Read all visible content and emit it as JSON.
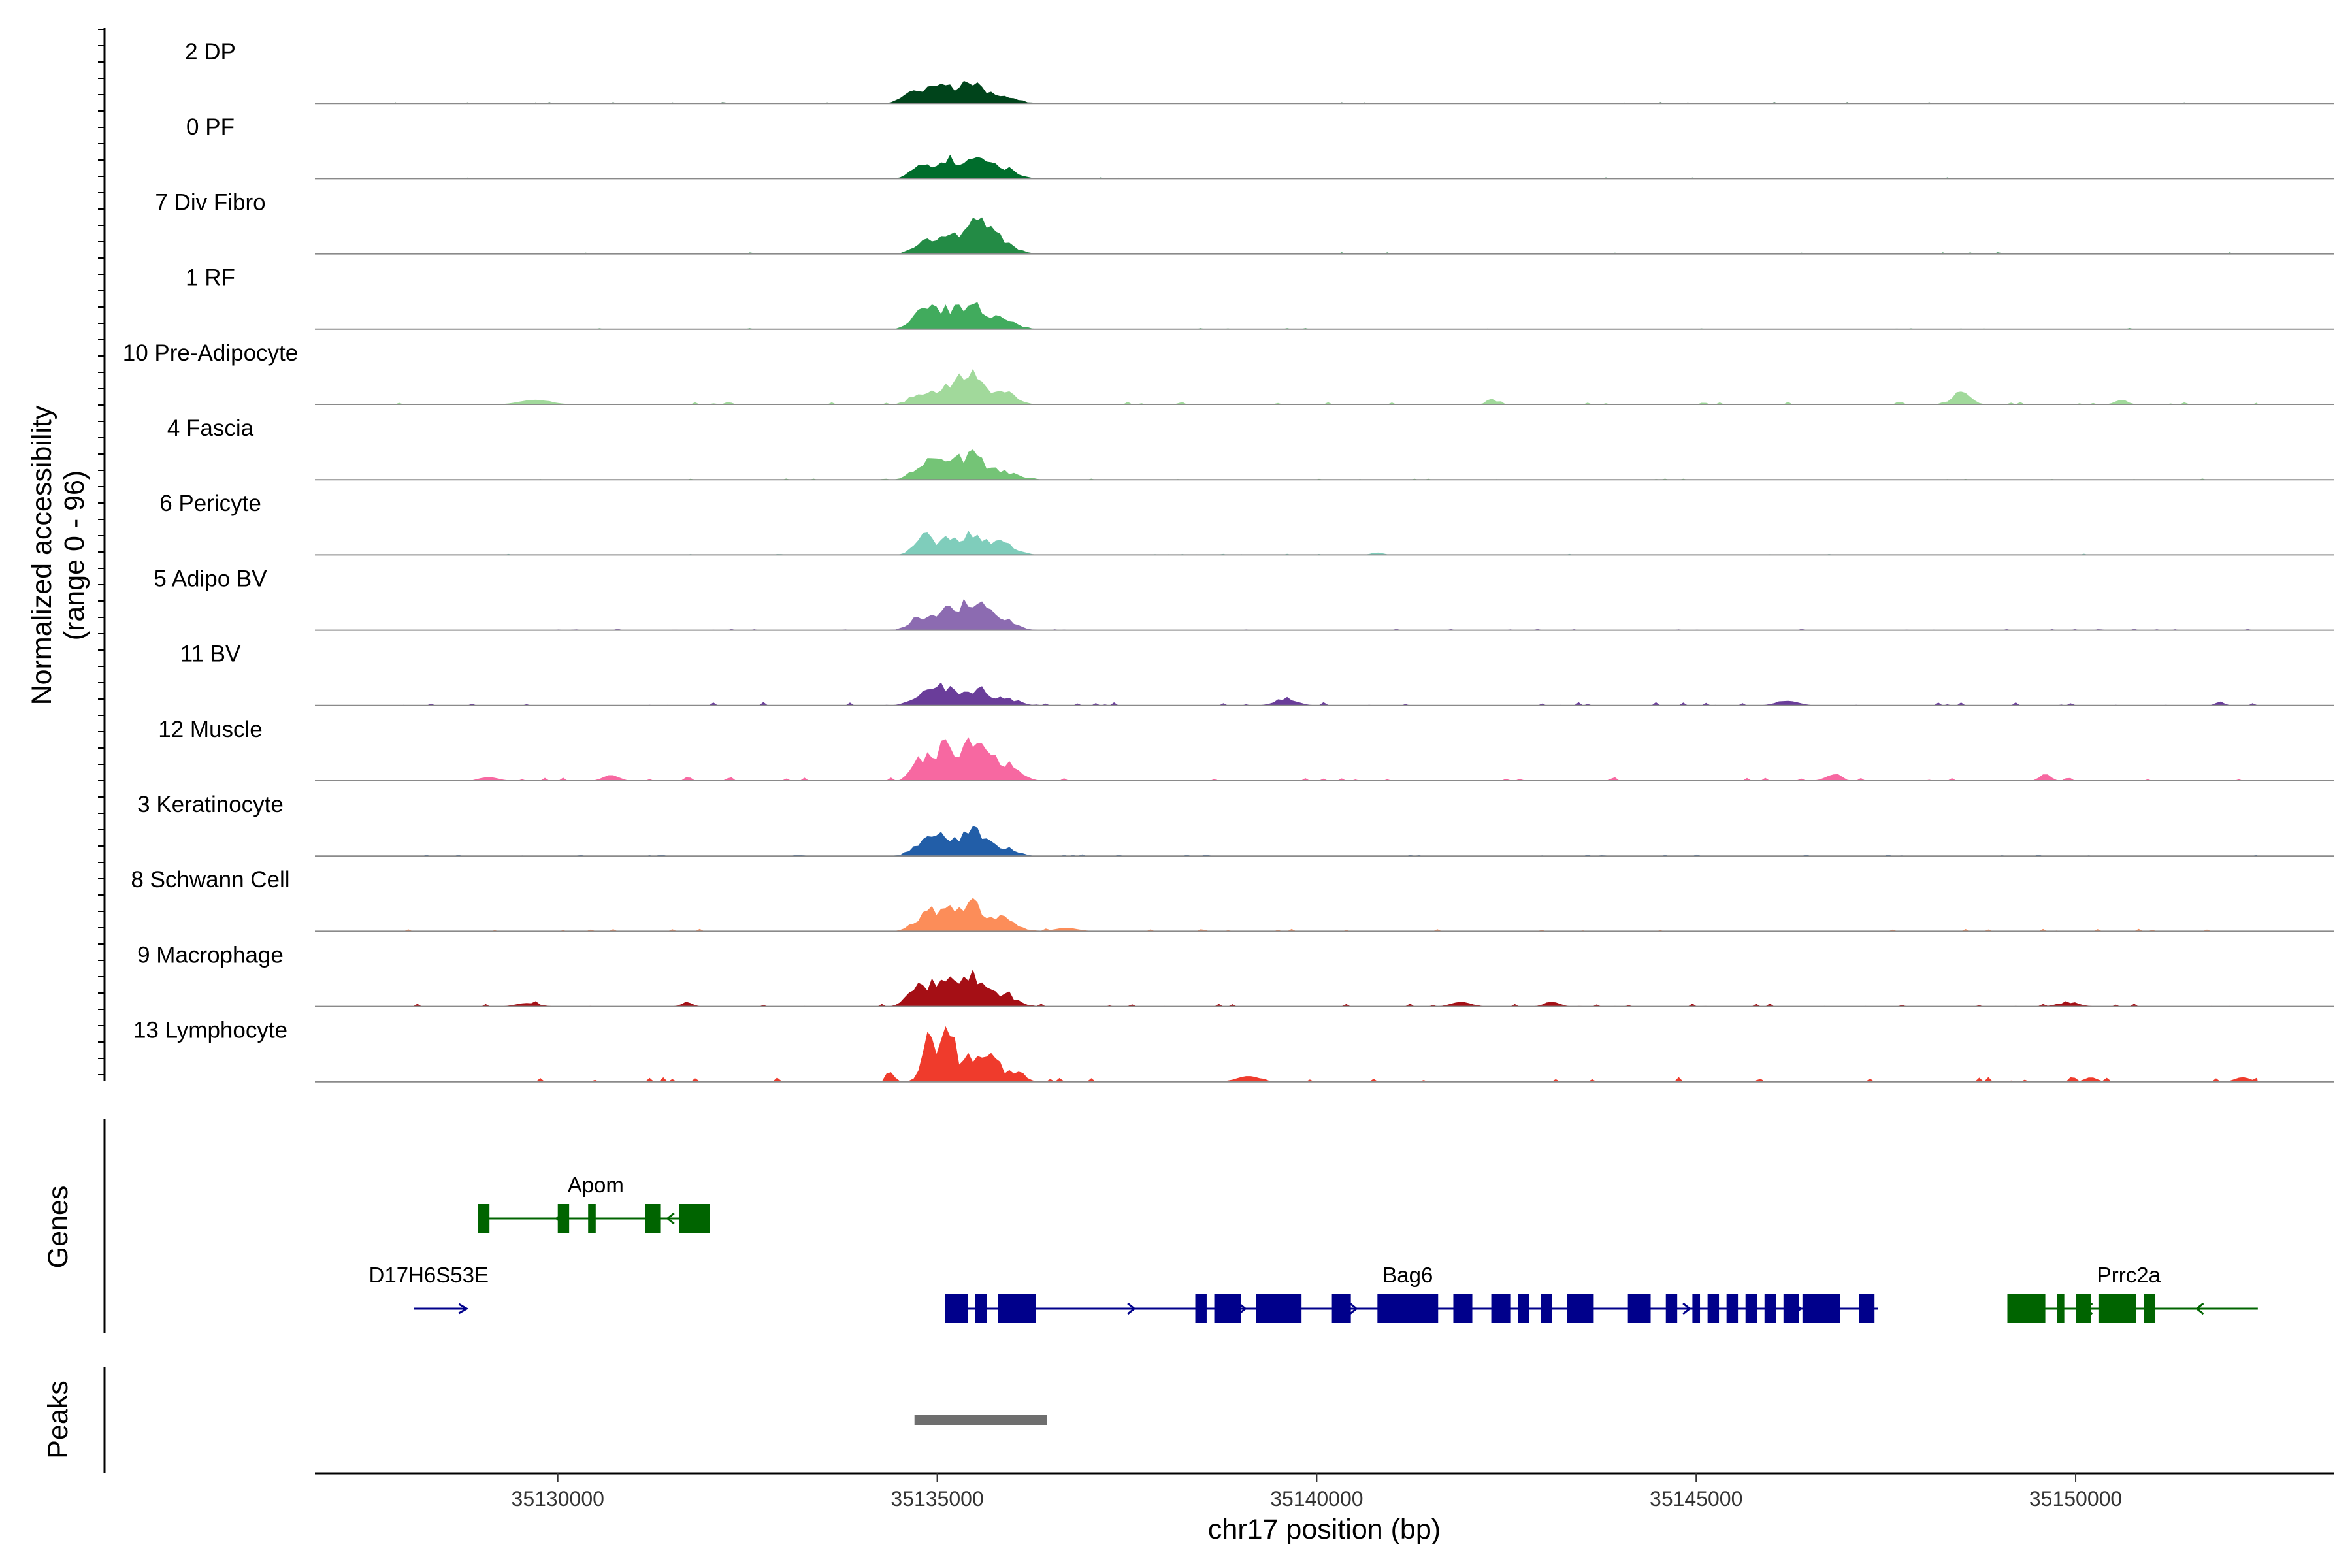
{
  "chart_data": {
    "type": "area",
    "title": "",
    "chromosome": "chr17",
    "xlabel": "chr17 position (bp)",
    "ylabel": "Normalized accessibility",
    "ylabel_range": "(range 0 - 96)",
    "ylim": [
      0,
      96
    ],
    "xlim": [
      35126800,
      35153400
    ],
    "x_ticks": [
      35130000,
      35135000,
      35140000,
      35145000,
      35150000
    ],
    "x_tick_labels": [
      "35130000",
      "35135000",
      "35140000",
      "35145000",
      "35150000"
    ],
    "tracks": [
      {
        "name": "2 DP",
        "color": "#00441b",
        "peaks": [
          [
            35134700,
            22,
            140
          ],
          [
            35135000,
            30,
            140
          ],
          [
            35135400,
            36,
            160
          ],
          [
            35135800,
            18,
            180
          ]
        ],
        "noise": 1.5
      },
      {
        "name": "0 PF",
        "color": "#006d2c",
        "peaks": [
          [
            35134800,
            30,
            130
          ],
          [
            35135150,
            34,
            130
          ],
          [
            35135500,
            32,
            150
          ],
          [
            35135850,
            20,
            170
          ]
        ],
        "noise": 1.5
      },
      {
        "name": "7 Div Fibro",
        "color": "#238b45",
        "peaks": [
          [
            35134800,
            22,
            130
          ],
          [
            35135100,
            28,
            140
          ],
          [
            35135500,
            52,
            170
          ],
          [
            35135850,
            24,
            170
          ]
        ],
        "noise": 2
      },
      {
        "name": "1 RF",
        "color": "#41ab5d",
        "peaks": [
          [
            35134800,
            34,
            130
          ],
          [
            35135100,
            36,
            130
          ],
          [
            35135450,
            44,
            150
          ],
          [
            35135850,
            18,
            180
          ]
        ],
        "noise": 1.5
      },
      {
        "name": "10 Pre-Adipocyte",
        "color": "#a1d99b",
        "peaks": [
          [
            35134800,
            22,
            130
          ],
          [
            35135150,
            26,
            140
          ],
          [
            35135450,
            48,
            160
          ],
          [
            35135850,
            22,
            170
          ],
          [
            35148500,
            22,
            110
          ],
          [
            35129700,
            8,
            200
          ],
          [
            35150600,
            8,
            80
          ],
          [
            35142300,
            10,
            60
          ]
        ],
        "noise": 3.5
      },
      {
        "name": "4 Fascia",
        "color": "#74c476",
        "peaks": [
          [
            35134800,
            30,
            130
          ],
          [
            35135100,
            32,
            140
          ],
          [
            35135450,
            42,
            160
          ],
          [
            35135850,
            16,
            180
          ]
        ],
        "noise": 1.5
      },
      {
        "name": "6 Pericyte",
        "color": "#7fcdbb",
        "peaks": [
          [
            35134800,
            36,
            110
          ],
          [
            35135100,
            24,
            140
          ],
          [
            35135450,
            40,
            160
          ],
          [
            35135850,
            22,
            170
          ],
          [
            35140800,
            4,
            80
          ]
        ],
        "noise": 1.5
      },
      {
        "name": "5 Adipo BV",
        "color": "#8c6bb1",
        "peaks": [
          [
            35134800,
            22,
            150
          ],
          [
            35135100,
            30,
            140
          ],
          [
            35135450,
            56,
            170
          ],
          [
            35135850,
            20,
            180
          ]
        ],
        "noise": 2
      },
      {
        "name": "11 BV",
        "color": "#6a3d9a",
        "peaks": [
          [
            35134800,
            18,
            150
          ],
          [
            35135100,
            30,
            140
          ],
          [
            35135500,
            30,
            160
          ],
          [
            35135900,
            12,
            180
          ],
          [
            35139600,
            10,
            150
          ],
          [
            35146200,
            8,
            150
          ],
          [
            35151900,
            6,
            60
          ]
        ],
        "noise": 4.5
      },
      {
        "name": "12 Muscle",
        "color": "#f768a1",
        "peaks": [
          [
            35134800,
            38,
            120
          ],
          [
            35135100,
            58,
            130
          ],
          [
            35135450,
            68,
            150
          ],
          [
            35135850,
            36,
            180
          ],
          [
            35129100,
            6,
            120
          ],
          [
            35130700,
            10,
            100
          ],
          [
            35146800,
            10,
            100
          ],
          [
            35149600,
            12,
            70
          ]
        ],
        "noise": 4.5
      },
      {
        "name": "3 Keratinocyte",
        "color": "#225ea8",
        "peaks": [
          [
            35134800,
            26,
            130
          ],
          [
            35135100,
            34,
            130
          ],
          [
            35135450,
            44,
            150
          ],
          [
            35135850,
            18,
            170
          ]
        ],
        "noise": 2
      },
      {
        "name": "8 Schwann Cell",
        "color": "#fc8d59",
        "peaks": [
          [
            35134800,
            24,
            130
          ],
          [
            35135100,
            46,
            140
          ],
          [
            35135450,
            46,
            160
          ],
          [
            35135850,
            22,
            180
          ],
          [
            35136700,
            6,
            150
          ]
        ],
        "noise": 3
      },
      {
        "name": "9 Macrophage",
        "color": "#a50f15",
        "peaks": [
          [
            35134750,
            36,
            130
          ],
          [
            35135100,
            58,
            140
          ],
          [
            35135450,
            58,
            160
          ],
          [
            35135850,
            22,
            180
          ],
          [
            35129600,
            6,
            150
          ],
          [
            35131700,
            6,
            80
          ],
          [
            35141900,
            8,
            130
          ],
          [
            35143100,
            8,
            100
          ],
          [
            35149900,
            6,
            150
          ]
        ],
        "noise": 4
      },
      {
        "name": "13 Lymphocyte",
        "color": "#ef3b2c",
        "peaks": [
          [
            35134400,
            16,
            50
          ],
          [
            35134900,
            82,
            90
          ],
          [
            35135150,
            90,
            90
          ],
          [
            35135450,
            44,
            110
          ],
          [
            35135750,
            46,
            100
          ],
          [
            35136050,
            20,
            90
          ],
          [
            35139100,
            10,
            150
          ],
          [
            35150200,
            8,
            80
          ],
          [
            35152200,
            8,
            100
          ]
        ],
        "noise": 6
      }
    ],
    "genes_panel_title": "Genes",
    "genes": [
      {
        "name": "Apom",
        "strand": "-",
        "color": "#006400",
        "row": 0,
        "start": 35128950,
        "end": 35132000,
        "label_pos": 35130500,
        "exons": [
          [
            35128950,
            35129100
          ],
          [
            35130000,
            35130150
          ],
          [
            35130400,
            35130500
          ],
          [
            35131150,
            35131350
          ],
          [
            35131600,
            35132000
          ]
        ]
      },
      {
        "name": "D17H6S53E",
        "strand": "+",
        "color": "#00008b",
        "row": 1,
        "start": 35128100,
        "end": 35128800,
        "label_pos": 35128300,
        "exons": []
      },
      {
        "name": "Bag6",
        "strand": "+",
        "color": "#00008b",
        "row": 1,
        "start": 35135100,
        "end": 35147400,
        "label_pos": 35141200,
        "exons": [
          [
            35135100,
            35135400
          ],
          [
            35135500,
            35135650
          ],
          [
            35135800,
            35136300
          ],
          [
            35138400,
            35138550
          ],
          [
            35138650,
            35139000
          ],
          [
            35139200,
            35139800
          ],
          [
            35140200,
            35140450
          ],
          [
            35140800,
            35141600
          ],
          [
            35141800,
            35142050
          ],
          [
            35142300,
            35142550
          ],
          [
            35142650,
            35142800
          ],
          [
            35142950,
            35143100
          ],
          [
            35143300,
            35143650
          ],
          [
            35144100,
            35144400
          ],
          [
            35144600,
            35144750
          ],
          [
            35144950,
            35145050
          ],
          [
            35145150,
            35145300
          ],
          [
            35145400,
            35145550
          ],
          [
            35145650,
            35145800
          ],
          [
            35145900,
            35146050
          ],
          [
            35146150,
            35146350
          ],
          [
            35146400,
            35146900
          ],
          [
            35147150,
            35147350
          ]
        ]
      },
      {
        "name": "Prrc2a",
        "strand": "-",
        "color": "#006400",
        "row": 1,
        "start": 35149100,
        "end": 35152400,
        "label_pos": 35150700,
        "exons": [
          [
            35149100,
            35149600
          ],
          [
            35149750,
            35149850
          ],
          [
            35150000,
            35150200
          ],
          [
            35150300,
            35150800
          ],
          [
            35150900,
            35151050
          ]
        ]
      }
    ],
    "peaks_panel_title": "Peaks",
    "peak_regions": [
      [
        35134700,
        35136450
      ]
    ]
  }
}
